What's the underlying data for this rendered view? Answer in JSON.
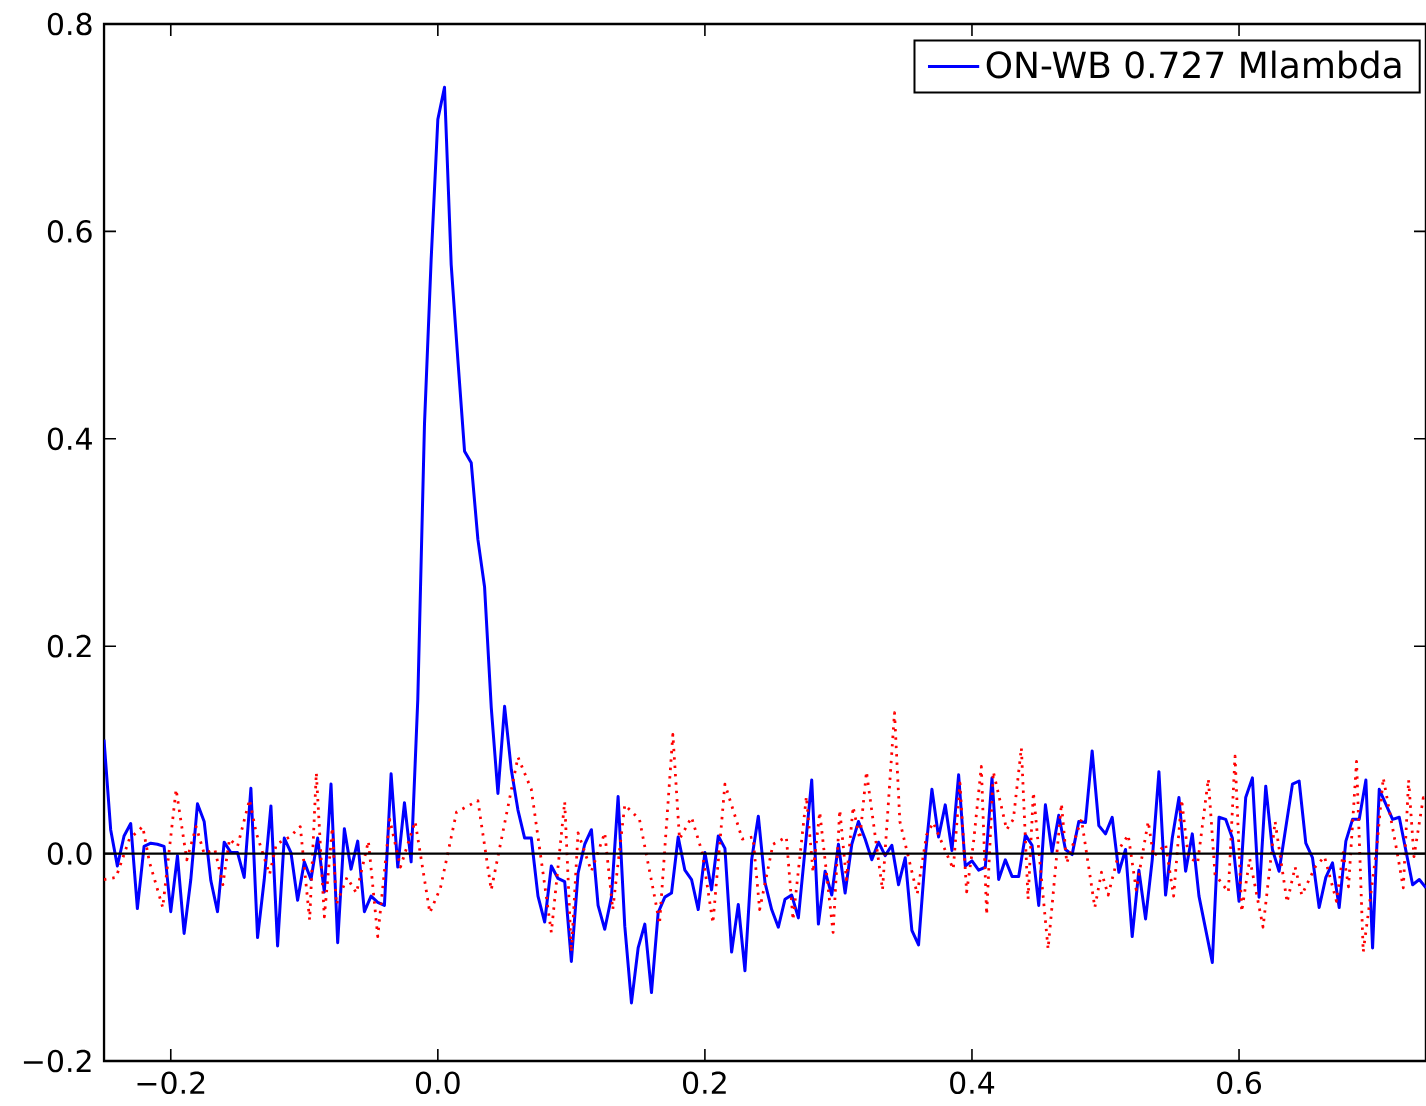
{
  "chart_data": {
    "type": "line",
    "xlim": [
      -0.25,
      0.74
    ],
    "ylim": [
      -0.2,
      0.8
    ],
    "xticks": [
      {
        "value": -0.2,
        "label": "−0.2"
      },
      {
        "value": 0,
        "label": "0.0"
      },
      {
        "value": 0.2,
        "label": "0.2"
      },
      {
        "value": 0.4,
        "label": "0.4"
      },
      {
        "value": 0.6,
        "label": "0.6"
      }
    ],
    "yticks": [
      {
        "value": -0.2,
        "label": "−0.2"
      },
      {
        "value": 0,
        "label": "0.0"
      },
      {
        "value": 0.2,
        "label": "0.2"
      },
      {
        "value": 0.4,
        "label": "0.4"
      },
      {
        "value": 0.6,
        "label": "0.6"
      },
      {
        "value": 0.8,
        "label": "0.8"
      }
    ],
    "legend": "top right",
    "ref_lines": [
      {
        "axis": "y",
        "value": 0,
        "color": "#000000"
      }
    ],
    "series": [
      {
        "name": "ON-WB 0.727 Mlambda",
        "color": "#0000ff",
        "line_style": "solid",
        "x": [
          -0.25,
          -0.245,
          -0.24,
          -0.235,
          -0.23,
          -0.225,
          -0.22,
          -0.215,
          -0.21,
          -0.205,
          -0.2,
          -0.195,
          -0.19,
          -0.185,
          -0.18,
          -0.175,
          -0.17,
          -0.165,
          -0.16,
          -0.155,
          -0.15,
          -0.145,
          -0.14,
          -0.135,
          -0.13,
          -0.125,
          -0.12,
          -0.115,
          -0.11,
          -0.105,
          -0.1,
          -0.095,
          -0.09,
          -0.085,
          -0.08,
          -0.075,
          -0.07,
          -0.065,
          -0.06,
          -0.055,
          -0.05,
          -0.045,
          -0.04,
          -0.035,
          -0.03,
          -0.025,
          -0.02,
          -0.015,
          -0.01,
          -0.005,
          0,
          0.005,
          0.01,
          0.015,
          0.02,
          0.025,
          0.03,
          0.035,
          0.04,
          0.045,
          0.05,
          0.055,
          0.06,
          0.065,
          0.07,
          0.075,
          0.08,
          0.085,
          0.09,
          0.095,
          0.1,
          0.105,
          0.11,
          0.115,
          0.12,
          0.125,
          0.13,
          0.135,
          0.14,
          0.145,
          0.15,
          0.155,
          0.16,
          0.165,
          0.17,
          0.175,
          0.18,
          0.185,
          0.19,
          0.195,
          0.2,
          0.205,
          0.21,
          0.215,
          0.22,
          0.225,
          0.23,
          0.235,
          0.24,
          0.245,
          0.25,
          0.255,
          0.26,
          0.265,
          0.27,
          0.275,
          0.28,
          0.285,
          0.29,
          0.295,
          0.3,
          0.305,
          0.31,
          0.315,
          0.32,
          0.325,
          0.33,
          0.335,
          0.34,
          0.345,
          0.35,
          0.355,
          0.36,
          0.365,
          0.37,
          0.375,
          0.38,
          0.385,
          0.39,
          0.395,
          0.4,
          0.405,
          0.41,
          0.415,
          0.42,
          0.425,
          0.43,
          0.435,
          0.44,
          0.445,
          0.45,
          0.455,
          0.46,
          0.465,
          0.47,
          0.475,
          0.48,
          0.485,
          0.49,
          0.495,
          0.5,
          0.505,
          0.51,
          0.515,
          0.52,
          0.525,
          0.53,
          0.535,
          0.54,
          0.545,
          0.55,
          0.555,
          0.56,
          0.565,
          0.57,
          0.58,
          0.585,
          0.59,
          0.595,
          0.6,
          0.605,
          0.61,
          0.615,
          0.62,
          0.625,
          0.63,
          0.64,
          0.645,
          0.65,
          0.655,
          0.66,
          0.665,
          0.67,
          0.675,
          0.68,
          0.685,
          0.69,
          0.695,
          0.7,
          0.705,
          0.715,
          0.72,
          0.73,
          0.735,
          0.74
        ],
        "values": [
          0.11,
          0.023,
          -0.012,
          0.017,
          0.029,
          -0.053,
          0.007,
          0.01,
          0.009,
          0.007,
          -0.056,
          -0.002,
          -0.077,
          -0.025,
          0.048,
          0.031,
          -0.026,
          -0.056,
          0.011,
          0.001,
          0.001,
          -0.023,
          0.063,
          -0.081,
          -0.025,
          0.046,
          -0.089,
          0.015,
          0.001,
          -0.045,
          -0.008,
          -0.025,
          0.015,
          -0.037,
          0.067,
          -0.086,
          0.024,
          -0.015,
          0.012,
          -0.056,
          -0.041,
          -0.047,
          -0.05,
          0.077,
          -0.013,
          0.049,
          -0.008,
          0.149,
          0.414,
          0.573,
          0.708,
          0.739,
          0.568,
          0.476,
          0.388,
          0.377,
          0.303,
          0.257,
          0.141,
          0.058,
          0.142,
          0.081,
          0.042,
          0.015,
          0.015,
          -0.041,
          -0.066,
          -0.012,
          -0.024,
          -0.027,
          -0.104,
          -0.019,
          0.009,
          0.023,
          -0.05,
          -0.073,
          -0.042,
          0.055,
          -0.07,
          -0.144,
          -0.091,
          -0.068,
          -0.134,
          -0.057,
          -0.042,
          -0.038,
          0.016,
          -0.016,
          -0.025,
          -0.054,
          0.001,
          -0.035,
          0.017,
          0.005,
          -0.095,
          -0.049,
          -0.113,
          -0.006,
          0.036,
          -0.028,
          -0.054,
          -0.071,
          -0.044,
          -0.04,
          -0.062,
          0.004,
          0.071,
          -0.068,
          -0.017,
          -0.04,
          0.009,
          -0.038,
          0.009,
          0.031,
          0.014,
          -0.006,
          0.011,
          -0.002,
          0.008,
          -0.03,
          -0.004,
          -0.074,
          -0.088,
          -0.003,
          0.062,
          0.016,
          0.047,
          0.003,
          0.076,
          -0.012,
          -0.007,
          -0.016,
          -0.013,
          0.073,
          -0.025,
          -0.006,
          -0.022,
          -0.022,
          0.018,
          0.008,
          -0.05,
          0.047,
          0.001,
          0.037,
          0.004,
          -0.001,
          0.031,
          0.03,
          0.099,
          0.027,
          0.019,
          0.035,
          -0.018,
          0.004,
          -0.08,
          -0.016,
          -0.063,
          -0.006,
          0.079,
          -0.04,
          0.015,
          0.054,
          -0.017,
          0.019,
          -0.041,
          -0.105,
          0.035,
          0.033,
          0.015,
          -0.046,
          0.054,
          0.073,
          -0.042,
          0.065,
          0.004,
          -0.017,
          0.067,
          0.07,
          0.01,
          -0.004,
          -0.052,
          -0.023,
          -0.009,
          -0.052,
          0.012,
          0.033,
          0.033,
          0.071,
          -0.091,
          0.062,
          0.033,
          0.035,
          -0.03,
          -0.025,
          -0.033
        ]
      },
      {
        "color": "#ff0000",
        "line_style": "dotted",
        "x": [
          -0.25,
          -0.241,
          -0.231,
          -0.221,
          -0.216,
          -0.206,
          -0.196,
          -0.188,
          -0.181,
          -0.175,
          -0.167,
          -0.161,
          -0.156,
          -0.15,
          -0.141,
          -0.136,
          -0.126,
          -0.121,
          -0.111,
          -0.103,
          -0.096,
          -0.091,
          -0.085,
          -0.079,
          -0.076,
          -0.068,
          -0.061,
          -0.052,
          -0.045,
          -0.036,
          -0.028,
          -0.017,
          -0.006,
          0.002,
          0.014,
          0.03,
          0.04,
          0.06,
          0.07,
          0.085,
          0.095,
          0.1,
          0.105,
          0.115,
          0.125,
          0.131,
          0.14,
          0.151,
          0.163,
          0.166,
          0.176,
          0.181,
          0.19,
          0.198,
          0.206,
          0.215,
          0.228,
          0.236,
          0.241,
          0.251,
          0.261,
          0.266,
          0.276,
          0.281,
          0.286,
          0.296,
          0.301,
          0.306,
          0.311,
          0.316,
          0.321,
          0.333,
          0.342,
          0.346,
          0.359,
          0.366,
          0.371,
          0.386,
          0.391,
          0.396,
          0.401,
          0.407,
          0.411,
          0.416,
          0.426,
          0.431,
          0.437,
          0.442,
          0.446,
          0.457,
          0.467,
          0.471,
          0.482,
          0.492,
          0.497,
          0.502,
          0.511,
          0.517,
          0.523,
          0.532,
          0.536,
          0.545,
          0.551,
          0.557,
          0.562,
          0.569,
          0.577,
          0.582,
          0.592,
          0.597,
          0.602,
          0.608,
          0.618,
          0.627,
          0.636,
          0.642,
          0.647,
          0.657,
          0.664,
          0.673,
          0.678,
          0.682,
          0.688,
          0.693,
          0.703,
          0.708,
          0.718,
          0.723,
          0.727,
          0.731,
          0.738,
          0.74
        ],
        "values": [
          -0.025,
          -0.023,
          0.014,
          0.026,
          -0.008,
          -0.052,
          0.062,
          -0.006,
          0.026,
          0.0,
          0.004,
          -0.03,
          0.014,
          0.007,
          0.052,
          0.02,
          -0.02,
          0.009,
          0.016,
          0.026,
          -0.064,
          0.078,
          -0.061,
          0.025,
          -0.049,
          -0.023,
          -0.038,
          0.012,
          -0.08,
          0.033,
          -0.013,
          0.031,
          -0.057,
          -0.033,
          0.04,
          0.051,
          -0.035,
          0.093,
          0.062,
          -0.076,
          0.05,
          -0.095,
          0.02,
          -0.017,
          0.02,
          -0.054,
          0.047,
          0.033,
          -0.046,
          -0.068,
          0.115,
          0.014,
          0.035,
          0.001,
          -0.067,
          0.067,
          0.014,
          0.016,
          -0.054,
          0.009,
          0.016,
          -0.064,
          0.055,
          -0.018,
          0.04,
          -0.076,
          0.042,
          -0.025,
          0.045,
          0.014,
          0.079,
          -0.035,
          0.136,
          0.031,
          -0.039,
          0.018,
          0.03,
          -0.015,
          0.068,
          -0.037,
          0.009,
          0.084,
          -0.059,
          0.079,
          0.023,
          0.033,
          0.102,
          -0.044,
          0.059,
          -0.092,
          0.048,
          -0.009,
          0.033,
          -0.052,
          -0.018,
          -0.04,
          0.006,
          0.018,
          -0.035,
          0.031,
          -0.003,
          0.009,
          -0.041,
          0.052,
          -0.003,
          -0.009,
          0.072,
          -0.02,
          -0.037,
          0.094,
          -0.056,
          -0.005,
          -0.071,
          0.031,
          -0.047,
          -0.013,
          -0.04,
          -0.013,
          -0.003,
          -0.046,
          0.001,
          -0.032,
          0.089,
          -0.095,
          0.004,
          0.073,
          0.004,
          -0.033,
          0.071,
          -0.003,
          0.054,
          0.05
        ]
      }
    ]
  }
}
